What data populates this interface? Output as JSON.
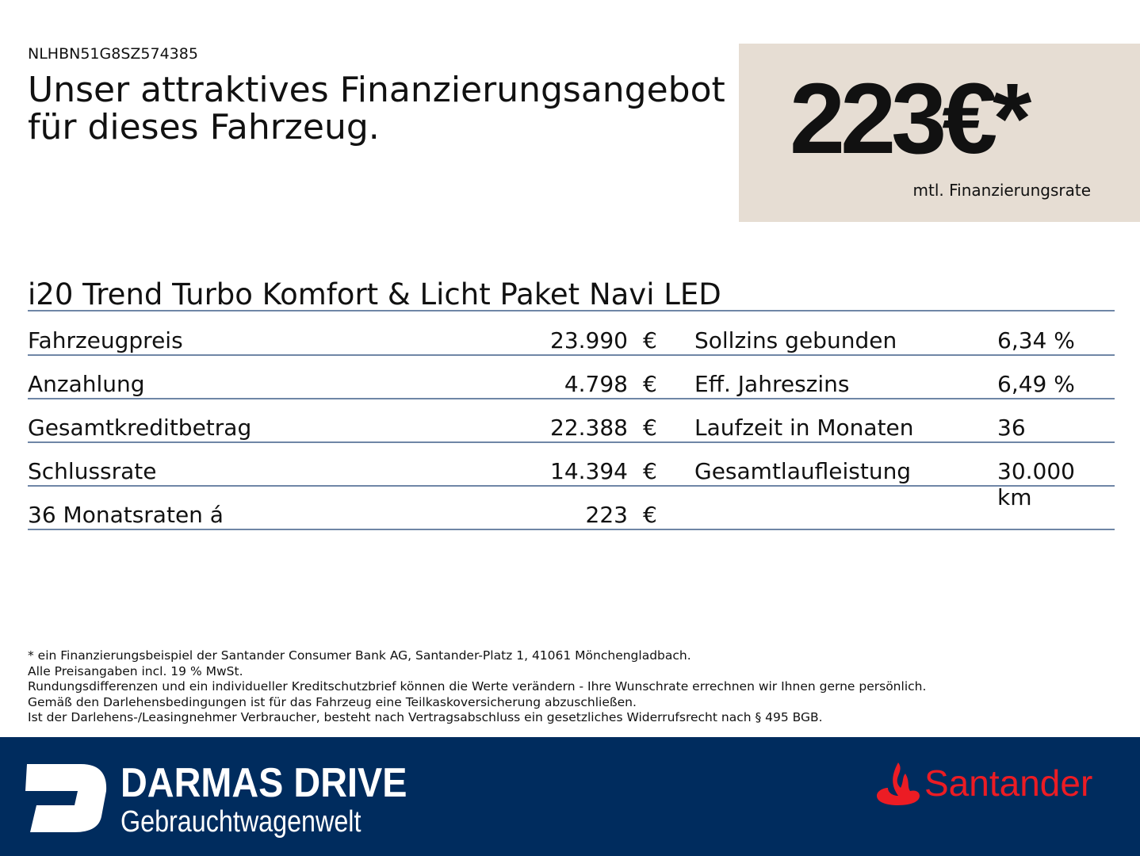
{
  "vin": "NLHBN51G8SZ574385",
  "title": "Unser attraktives Finanzierungsangebot für dieses Fahrzeug.",
  "price": {
    "value": "223€*",
    "label": "mtl. Finanzierungsrate"
  },
  "model": "i20 Trend Turbo Komfort & Licht Paket Navi LED",
  "rows": [
    {
      "label": "Fahrzeugpreis",
      "value": "23.990",
      "currency": "€",
      "rlabel": "Sollzins gebunden",
      "rvalue": "6,34 %"
    },
    {
      "label": "Anzahlung",
      "value": "4.798",
      "currency": "€",
      "rlabel": "Eff. Jahreszins",
      "rvalue": "6,49 %"
    },
    {
      "label": "Gesamtkreditbetrag",
      "value": "22.388",
      "currency": "€",
      "rlabel": "Laufzeit in Monaten",
      "rvalue": "36"
    },
    {
      "label": "Schlussrate",
      "value": "14.394",
      "currency": "€",
      "rlabel": "Gesamtlaufleistung",
      "rvalue": "30.000 km"
    },
    {
      "label": "36 Monatsraten á",
      "value": "223",
      "currency": "€",
      "rlabel": "",
      "rvalue": ""
    }
  ],
  "notes": [
    "* ein Finanzierungsbeispiel der Santander Consumer Bank AG, Santander-Platz 1, 41061 Mönchengladbach.",
    "Alle Preisangaben incl. 19 % MwSt.",
    "Rundungsdifferenzen und ein individueller Kreditschutzbrief können die Werte verändern - Ihre Wunschrate errechnen wir Ihnen gerne persönlich.",
    "Gemäß den Darlehensbedingungen ist für das Fahrzeug eine Teilkaskoversicherung abzuschließen.",
    "Ist der Darlehens-/Leasingnehmer Verbraucher, besteht nach Vertragsabschluss ein gesetzliches Widerrufsrecht nach § 495 BGB."
  ],
  "footer": {
    "brand": "DARMAS DRIVE",
    "subbrand": "Gebrauchtwagenwelt",
    "partner": "Santander"
  },
  "colors": {
    "footer": "#002c5e",
    "pricebox": "#e6ddd3",
    "rule": "#6f86a6",
    "santander": "#ec1c24"
  }
}
